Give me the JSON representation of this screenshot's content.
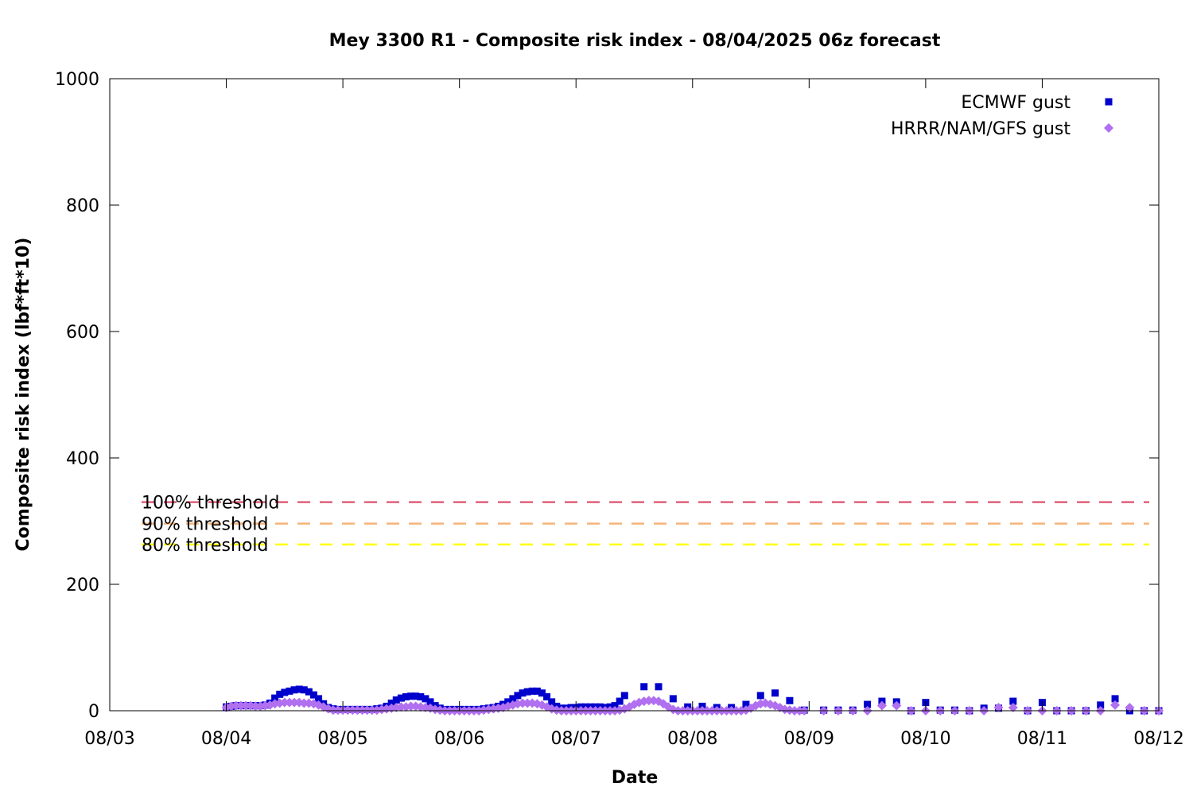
{
  "chart_data": {
    "type": "scatter",
    "title": "Mey 3300 R1 - Composite risk index - 08/04/2025 06z forecast",
    "xlabel": "Date",
    "ylabel": "Composite risk index (lbf*ft*10)",
    "x_ticks": [
      "08/03",
      "08/04",
      "08/05",
      "08/06",
      "08/07",
      "08/08",
      "08/09",
      "08/10",
      "08/11",
      "08/12"
    ],
    "xlim": [
      "2025-08-03 00:00",
      "2025-08-12 00:00"
    ],
    "ylim": [
      0,
      1000
    ],
    "y_ticks": [
      0,
      200,
      400,
      600,
      800,
      1000
    ],
    "grid": false,
    "legend_position": "top-right",
    "thresholds": [
      {
        "label": "100% threshold",
        "value": 330,
        "color": "#e0607a"
      },
      {
        "label": "90% threshold",
        "value": 296,
        "color": "#f5b57a"
      },
      {
        "label": "80% threshold",
        "value": 263,
        "color": "#ffff00"
      }
    ],
    "series": [
      {
        "name": "ECMWF gust",
        "color": "#0000cc",
        "marker": "square",
        "points": [
          [
            "2025-08-04 00:00",
            6
          ],
          [
            "2025-08-04 01:00",
            7
          ],
          [
            "2025-08-04 02:00",
            8
          ],
          [
            "2025-08-04 03:00",
            8
          ],
          [
            "2025-08-04 04:00",
            8
          ],
          [
            "2025-08-04 05:00",
            8
          ],
          [
            "2025-08-04 06:00",
            8
          ],
          [
            "2025-08-04 07:00",
            8
          ],
          [
            "2025-08-04 08:00",
            9
          ],
          [
            "2025-08-04 09:00",
            12
          ],
          [
            "2025-08-04 10:00",
            20
          ],
          [
            "2025-08-04 11:00",
            26
          ],
          [
            "2025-08-04 12:00",
            29
          ],
          [
            "2025-08-04 13:00",
            31
          ],
          [
            "2025-08-04 14:00",
            33
          ],
          [
            "2025-08-04 15:00",
            34
          ],
          [
            "2025-08-04 16:00",
            33
          ],
          [
            "2025-08-04 17:00",
            30
          ],
          [
            "2025-08-04 18:00",
            25
          ],
          [
            "2025-08-04 19:00",
            19
          ],
          [
            "2025-08-04 20:00",
            11
          ],
          [
            "2025-08-04 21:00",
            5
          ],
          [
            "2025-08-04 22:00",
            3
          ],
          [
            "2025-08-04 23:00",
            2
          ],
          [
            "2025-08-05 00:00",
            2
          ],
          [
            "2025-08-05 01:00",
            2
          ],
          [
            "2025-08-05 02:00",
            2
          ],
          [
            "2025-08-05 03:00",
            2
          ],
          [
            "2025-08-05 04:00",
            2
          ],
          [
            "2025-08-05 05:00",
            2
          ],
          [
            "2025-08-05 06:00",
            2
          ],
          [
            "2025-08-05 07:00",
            3
          ],
          [
            "2025-08-05 08:00",
            4
          ],
          [
            "2025-08-05 09:00",
            7
          ],
          [
            "2025-08-05 10:00",
            12
          ],
          [
            "2025-08-05 11:00",
            17
          ],
          [
            "2025-08-05 12:00",
            20
          ],
          [
            "2025-08-05 13:00",
            22
          ],
          [
            "2025-08-05 14:00",
            23
          ],
          [
            "2025-08-05 15:00",
            23
          ],
          [
            "2025-08-05 16:00",
            22
          ],
          [
            "2025-08-05 17:00",
            19
          ],
          [
            "2025-08-05 18:00",
            14
          ],
          [
            "2025-08-05 19:00",
            8
          ],
          [
            "2025-08-05 20:00",
            4
          ],
          [
            "2025-08-05 21:00",
            2
          ],
          [
            "2025-08-05 22:00",
            2
          ],
          [
            "2025-08-05 23:00",
            2
          ],
          [
            "2025-08-06 00:00",
            2
          ],
          [
            "2025-08-06 01:00",
            2
          ],
          [
            "2025-08-06 02:00",
            2
          ],
          [
            "2025-08-06 03:00",
            2
          ],
          [
            "2025-08-06 04:00",
            2
          ],
          [
            "2025-08-06 05:00",
            3
          ],
          [
            "2025-08-06 06:00",
            4
          ],
          [
            "2025-08-06 07:00",
            5
          ],
          [
            "2025-08-06 08:00",
            7
          ],
          [
            "2025-08-06 09:00",
            10
          ],
          [
            "2025-08-06 10:00",
            14
          ],
          [
            "2025-08-06 11:00",
            19
          ],
          [
            "2025-08-06 12:00",
            24
          ],
          [
            "2025-08-06 13:00",
            28
          ],
          [
            "2025-08-06 14:00",
            30
          ],
          [
            "2025-08-06 15:00",
            31
          ],
          [
            "2025-08-06 16:00",
            31
          ],
          [
            "2025-08-06 17:00",
            28
          ],
          [
            "2025-08-06 18:00",
            22
          ],
          [
            "2025-08-06 19:00",
            14
          ],
          [
            "2025-08-06 20:00",
            7
          ],
          [
            "2025-08-06 21:00",
            4
          ],
          [
            "2025-08-06 22:00",
            4
          ],
          [
            "2025-08-06 23:00",
            5
          ],
          [
            "2025-08-07 00:00",
            5
          ],
          [
            "2025-08-07 01:00",
            6
          ],
          [
            "2025-08-07 02:00",
            6
          ],
          [
            "2025-08-07 03:00",
            6
          ],
          [
            "2025-08-07 04:00",
            6
          ],
          [
            "2025-08-07 05:00",
            6
          ],
          [
            "2025-08-07 06:00",
            5
          ],
          [
            "2025-08-07 07:00",
            6
          ],
          [
            "2025-08-07 08:00",
            8
          ],
          [
            "2025-08-07 09:00",
            15
          ],
          [
            "2025-08-07 10:00",
            24
          ],
          [
            "2025-08-07 14:00",
            38
          ],
          [
            "2025-08-07 17:00",
            38
          ],
          [
            "2025-08-07 20:00",
            19
          ],
          [
            "2025-08-07 23:00",
            6
          ],
          [
            "2025-08-08 02:00",
            7
          ],
          [
            "2025-08-08 05:00",
            5
          ],
          [
            "2025-08-08 08:00",
            5
          ],
          [
            "2025-08-08 11:00",
            10
          ],
          [
            "2025-08-08 14:00",
            24
          ],
          [
            "2025-08-08 17:00",
            28
          ],
          [
            "2025-08-08 20:00",
            16
          ],
          [
            "2025-08-08 23:00",
            1
          ],
          [
            "2025-08-09 03:00",
            1
          ],
          [
            "2025-08-09 06:00",
            1
          ],
          [
            "2025-08-09 09:00",
            1
          ],
          [
            "2025-08-09 12:00",
            10
          ],
          [
            "2025-08-09 15:00",
            15
          ],
          [
            "2025-08-09 18:00",
            14
          ],
          [
            "2025-08-09 21:00",
            0
          ],
          [
            "2025-08-10 00:00",
            13
          ],
          [
            "2025-08-10 03:00",
            1
          ],
          [
            "2025-08-10 06:00",
            1
          ],
          [
            "2025-08-10 09:00",
            0
          ],
          [
            "2025-08-10 12:00",
            4
          ],
          [
            "2025-08-10 15:00",
            4
          ],
          [
            "2025-08-10 18:00",
            15
          ],
          [
            "2025-08-10 21:00",
            0
          ],
          [
            "2025-08-11 00:00",
            13
          ],
          [
            "2025-08-11 03:00",
            0
          ],
          [
            "2025-08-11 06:00",
            0
          ],
          [
            "2025-08-11 09:00",
            0
          ],
          [
            "2025-08-11 12:00",
            9
          ],
          [
            "2025-08-11 15:00",
            19
          ],
          [
            "2025-08-11 18:00",
            0
          ],
          [
            "2025-08-11 21:00",
            0
          ],
          [
            "2025-08-12 00:00",
            0
          ]
        ]
      },
      {
        "name": "HRRR/NAM/GFS gust",
        "color": "#b070f0",
        "marker": "diamond",
        "points": [
          [
            "2025-08-04 00:00",
            5
          ],
          [
            "2025-08-04 01:00",
            7
          ],
          [
            "2025-08-04 02:00",
            8
          ],
          [
            "2025-08-04 03:00",
            8
          ],
          [
            "2025-08-04 04:00",
            8
          ],
          [
            "2025-08-04 05:00",
            8
          ],
          [
            "2025-08-04 06:00",
            7
          ],
          [
            "2025-08-04 07:00",
            7
          ],
          [
            "2025-08-04 08:00",
            8
          ],
          [
            "2025-08-04 09:00",
            9
          ],
          [
            "2025-08-04 10:00",
            11
          ],
          [
            "2025-08-04 11:00",
            12
          ],
          [
            "2025-08-04 12:00",
            13
          ],
          [
            "2025-08-04 13:00",
            13
          ],
          [
            "2025-08-04 14:00",
            13
          ],
          [
            "2025-08-04 15:00",
            13
          ],
          [
            "2025-08-04 16:00",
            12
          ],
          [
            "2025-08-04 17:00",
            12
          ],
          [
            "2025-08-04 18:00",
            11
          ],
          [
            "2025-08-04 19:00",
            9
          ],
          [
            "2025-08-04 20:00",
            6
          ],
          [
            "2025-08-04 21:00",
            3
          ],
          [
            "2025-08-04 22:00",
            1
          ],
          [
            "2025-08-04 23:00",
            1
          ],
          [
            "2025-08-05 00:00",
            1
          ],
          [
            "2025-08-05 01:00",
            1
          ],
          [
            "2025-08-05 02:00",
            1
          ],
          [
            "2025-08-05 03:00",
            1
          ],
          [
            "2025-08-05 04:00",
            1
          ],
          [
            "2025-08-05 05:00",
            1
          ],
          [
            "2025-08-05 06:00",
            1
          ],
          [
            "2025-08-05 07:00",
            1
          ],
          [
            "2025-08-05 08:00",
            2
          ],
          [
            "2025-08-05 09:00",
            3
          ],
          [
            "2025-08-05 10:00",
            4
          ],
          [
            "2025-08-05 11:00",
            5
          ],
          [
            "2025-08-05 12:00",
            6
          ],
          [
            "2025-08-05 13:00",
            6
          ],
          [
            "2025-08-05 14:00",
            7
          ],
          [
            "2025-08-05 15:00",
            7
          ],
          [
            "2025-08-05 16:00",
            6
          ],
          [
            "2025-08-05 17:00",
            5
          ],
          [
            "2025-08-05 18:00",
            4
          ],
          [
            "2025-08-05 19:00",
            2
          ],
          [
            "2025-08-05 20:00",
            1
          ],
          [
            "2025-08-05 21:00",
            0
          ],
          [
            "2025-08-05 22:00",
            0
          ],
          [
            "2025-08-05 23:00",
            0
          ],
          [
            "2025-08-06 00:00",
            0
          ],
          [
            "2025-08-06 01:00",
            0
          ],
          [
            "2025-08-06 02:00",
            0
          ],
          [
            "2025-08-06 03:00",
            0
          ],
          [
            "2025-08-06 04:00",
            0
          ],
          [
            "2025-08-06 05:00",
            1
          ],
          [
            "2025-08-06 06:00",
            2
          ],
          [
            "2025-08-06 07:00",
            3
          ],
          [
            "2025-08-06 08:00",
            4
          ],
          [
            "2025-08-06 09:00",
            5
          ],
          [
            "2025-08-06 10:00",
            7
          ],
          [
            "2025-08-06 11:00",
            9
          ],
          [
            "2025-08-06 12:00",
            11
          ],
          [
            "2025-08-06 13:00",
            12
          ],
          [
            "2025-08-06 14:00",
            12
          ],
          [
            "2025-08-06 15:00",
            12
          ],
          [
            "2025-08-06 16:00",
            11
          ],
          [
            "2025-08-06 17:00",
            9
          ],
          [
            "2025-08-06 18:00",
            6
          ],
          [
            "2025-08-06 19:00",
            3
          ],
          [
            "2025-08-06 20:00",
            1
          ],
          [
            "2025-08-06 21:00",
            0
          ],
          [
            "2025-08-06 22:00",
            0
          ],
          [
            "2025-08-06 23:00",
            0
          ],
          [
            "2025-08-07 00:00",
            0
          ],
          [
            "2025-08-07 01:00",
            0
          ],
          [
            "2025-08-07 02:00",
            0
          ],
          [
            "2025-08-07 03:00",
            0
          ],
          [
            "2025-08-07 04:00",
            0
          ],
          [
            "2025-08-07 05:00",
            0
          ],
          [
            "2025-08-07 06:00",
            0
          ],
          [
            "2025-08-07 07:00",
            0
          ],
          [
            "2025-08-07 08:00",
            0
          ],
          [
            "2025-08-07 09:00",
            1
          ],
          [
            "2025-08-07 10:00",
            3
          ],
          [
            "2025-08-07 11:00",
            6
          ],
          [
            "2025-08-07 12:00",
            10
          ],
          [
            "2025-08-07 13:00",
            13
          ],
          [
            "2025-08-07 14:00",
            15
          ],
          [
            "2025-08-07 15:00",
            16
          ],
          [
            "2025-08-07 16:00",
            16
          ],
          [
            "2025-08-07 17:00",
            15
          ],
          [
            "2025-08-07 18:00",
            11
          ],
          [
            "2025-08-07 19:00",
            6
          ],
          [
            "2025-08-07 20:00",
            2
          ],
          [
            "2025-08-07 21:00",
            0
          ],
          [
            "2025-08-07 22:00",
            0
          ],
          [
            "2025-08-07 23:00",
            0
          ],
          [
            "2025-08-08 00:00",
            0
          ],
          [
            "2025-08-08 01:00",
            0
          ],
          [
            "2025-08-08 02:00",
            0
          ],
          [
            "2025-08-08 03:00",
            0
          ],
          [
            "2025-08-08 04:00",
            0
          ],
          [
            "2025-08-08 05:00",
            0
          ],
          [
            "2025-08-08 06:00",
            0
          ],
          [
            "2025-08-08 07:00",
            0
          ],
          [
            "2025-08-08 08:00",
            0
          ],
          [
            "2025-08-08 09:00",
            0
          ],
          [
            "2025-08-08 10:00",
            0
          ],
          [
            "2025-08-08 11:00",
            1
          ],
          [
            "2025-08-08 12:00",
            4
          ],
          [
            "2025-08-08 13:00",
            8
          ],
          [
            "2025-08-08 14:00",
            11
          ],
          [
            "2025-08-08 15:00",
            12
          ],
          [
            "2025-08-08 16:00",
            10
          ],
          [
            "2025-08-08 17:00",
            8
          ],
          [
            "2025-08-08 18:00",
            5
          ],
          [
            "2025-08-08 19:00",
            2
          ],
          [
            "2025-08-08 20:00",
            1
          ],
          [
            "2025-08-08 21:00",
            0
          ],
          [
            "2025-08-08 22:00",
            0
          ],
          [
            "2025-08-08 23:00",
            0
          ],
          [
            "2025-08-09 03:00",
            0
          ],
          [
            "2025-08-09 06:00",
            0
          ],
          [
            "2025-08-09 09:00",
            0
          ],
          [
            "2025-08-09 12:00",
            0
          ],
          [
            "2025-08-09 15:00",
            8
          ],
          [
            "2025-08-09 18:00",
            8
          ],
          [
            "2025-08-09 21:00",
            0
          ],
          [
            "2025-08-10 00:00",
            0
          ],
          [
            "2025-08-10 03:00",
            0
          ],
          [
            "2025-08-10 06:00",
            0
          ],
          [
            "2025-08-10 09:00",
            0
          ],
          [
            "2025-08-10 12:00",
            0
          ],
          [
            "2025-08-10 15:00",
            5
          ],
          [
            "2025-08-10 18:00",
            5
          ],
          [
            "2025-08-10 21:00",
            0
          ],
          [
            "2025-08-11 00:00",
            0
          ],
          [
            "2025-08-11 03:00",
            0
          ],
          [
            "2025-08-11 06:00",
            0
          ],
          [
            "2025-08-11 09:00",
            0
          ],
          [
            "2025-08-11 12:00",
            0
          ],
          [
            "2025-08-11 15:00",
            9
          ],
          [
            "2025-08-11 18:00",
            5
          ],
          [
            "2025-08-11 21:00",
            0
          ],
          [
            "2025-08-12 00:00",
            0
          ]
        ]
      }
    ]
  }
}
